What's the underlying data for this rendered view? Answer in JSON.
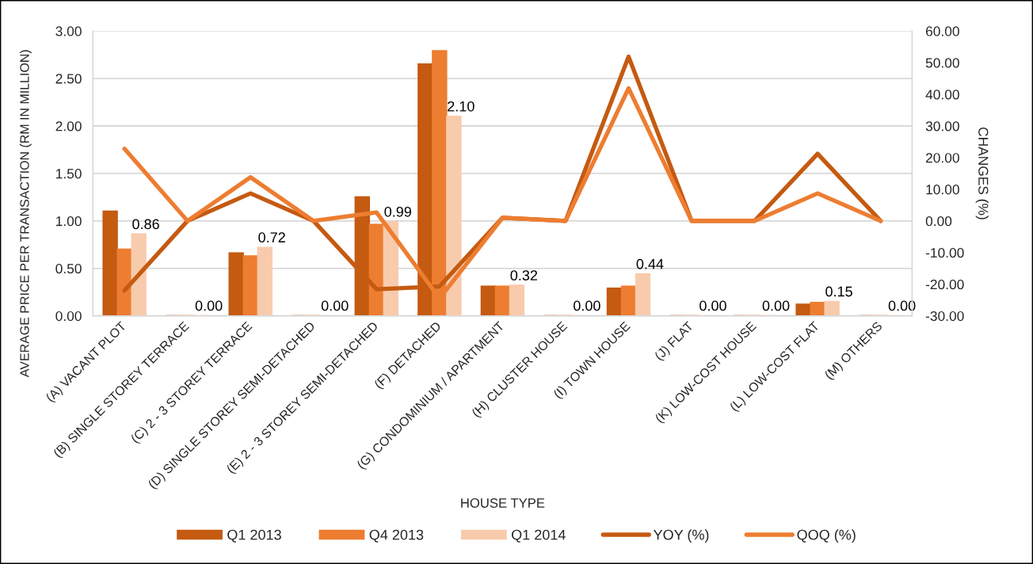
{
  "chart_data": {
    "type": "bar",
    "xlabel": "HOUSE TYPE",
    "ylabel": "AVERAGE PRICE PER TRANSACTION (RM IN MILLION)",
    "y2label": "CHANGES (%)",
    "categories": [
      "(A) VACANT PLOT",
      "(B) SINGLE STOREY TERRACE",
      "(C) 2 - 3 STOREY TERRACE",
      "(D) SINGLE STOREY SEMI-DETACHED",
      "(E) 2 - 3 STOREY SEMI-DETACHED",
      "(F) DETACHED",
      "(G) CONDOMINIUM / APARTMENT",
      "(H) CLUSTER HOUSE",
      "(I) TOWN HOUSE",
      "(J) FLAT",
      "(K) LOW-COST HOUSE",
      "(L) LOW-COST FLAT",
      "(M) OTHERS"
    ],
    "series": [
      {
        "name": "Q1 2013",
        "color": "#c55a11",
        "values": [
          1.1,
          0,
          0.66,
          0,
          1.25,
          2.65,
          0.31,
          0,
          0.29,
          0,
          0,
          0.12,
          0
        ]
      },
      {
        "name": "Q4 2013",
        "color": "#ed7d31",
        "values": [
          0.7,
          0,
          0.63,
          0,
          0.96,
          2.79,
          0.31,
          0,
          0.31,
          0,
          0,
          0.14,
          0
        ]
      },
      {
        "name": "Q1 2014",
        "color": "#f8cbad",
        "values": [
          0.86,
          0,
          0.72,
          0,
          0.99,
          2.1,
          0.32,
          0,
          0.44,
          0,
          0,
          0.15,
          0
        ],
        "value_labels": [
          "0.86",
          "0.00",
          "0.72",
          "0.00",
          "0.99",
          "2.10",
          "0.32",
          "0.00",
          "0.44",
          "0.00",
          "0.00",
          "0.15",
          "0.00"
        ]
      },
      {
        "name": "YOY (%)",
        "type": "line",
        "axis": "y2",
        "color": "#c55a11",
        "values": [
          -22.0,
          0,
          8.7,
          0,
          -21.6,
          -20.7,
          1.0,
          0,
          51.9,
          0,
          0,
          21.2,
          0
        ]
      },
      {
        "name": "QOQ (%)",
        "type": "line",
        "axis": "y2",
        "color": "#ed7d31",
        "values": [
          22.8,
          0,
          13.8,
          0,
          2.7,
          -24.5,
          1.0,
          0,
          41.9,
          0,
          0,
          8.7,
          0
        ]
      }
    ],
    "ylim": [
      0,
      3
    ],
    "yticks": [
      {
        "value": 0,
        "label": "0.00"
      },
      {
        "value": 0.5,
        "label": "0.50"
      },
      {
        "value": 1,
        "label": "1.00"
      },
      {
        "value": 1.5,
        "label": "1.50"
      },
      {
        "value": 2,
        "label": "2.00"
      },
      {
        "value": 2.5,
        "label": "2.50"
      },
      {
        "value": 3,
        "label": "3.00"
      }
    ],
    "y2lim": [
      -30,
      60
    ],
    "y2ticks": [
      {
        "value": -30,
        "label": "-30.00"
      },
      {
        "value": -20,
        "label": "-20.00"
      },
      {
        "value": -10,
        "label": "-10.00"
      },
      {
        "value": 0,
        "label": "0.00"
      },
      {
        "value": 10,
        "label": "10.00"
      },
      {
        "value": 20,
        "label": "20.00"
      },
      {
        "value": 30,
        "label": "30.00"
      },
      {
        "value": 40,
        "label": "40.00"
      },
      {
        "value": 50,
        "label": "50.00"
      },
      {
        "value": 60,
        "label": "60.00"
      }
    ],
    "grid": "y",
    "legend": "bottom"
  }
}
